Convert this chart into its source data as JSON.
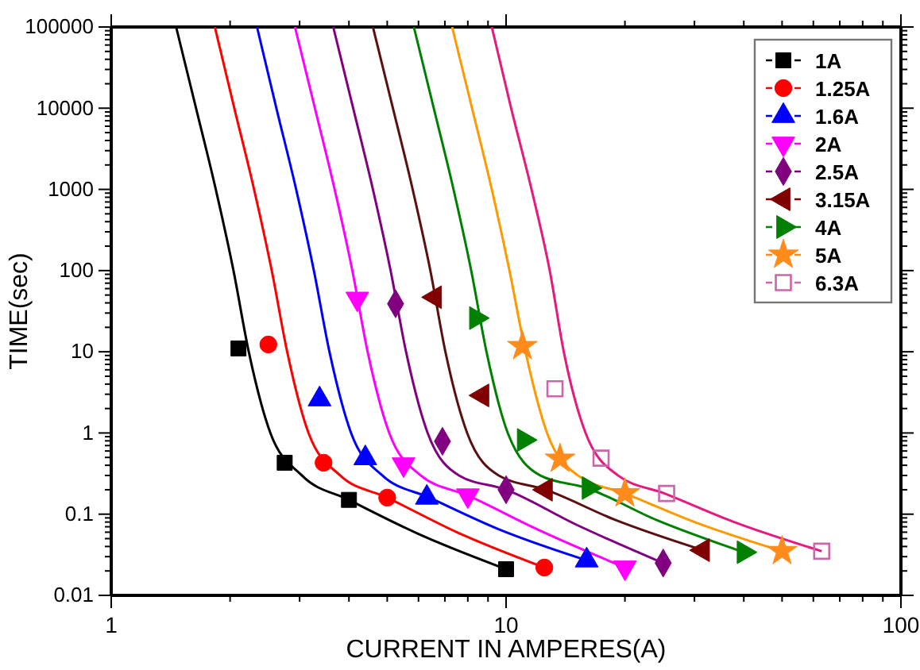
{
  "chart_data": {
    "type": "line",
    "xlabel": "CURRENT IN AMPERES(A)",
    "ylabel": "TIME(sec)",
    "log": "xy",
    "xlim": [
      1,
      100
    ],
    "ylim": [
      0.01,
      100000
    ],
    "xticks": [
      1,
      10,
      100
    ],
    "yticks": [
      0.01,
      0.1,
      1,
      10,
      100,
      1000,
      10000,
      100000
    ],
    "legend": "top right",
    "series": [
      {
        "name": "1A",
        "type": "scatter",
        "color": "#000000",
        "marker": "square",
        "x": [
          2.1,
          2.75,
          4,
          10
        ],
        "values": [
          11,
          0.43,
          0.15,
          0.021
        ]
      },
      {
        "name": "1.25A",
        "type": "scatter",
        "color": "#ff0000",
        "marker": "circle",
        "x": [
          2.5,
          3.45,
          5,
          12.5
        ],
        "values": [
          12.3,
          0.43,
          0.16,
          0.022
        ]
      },
      {
        "name": "1.6A",
        "type": "scatter",
        "color": "#0000ff",
        "marker": "triangle",
        "x": [
          3.37,
          4.4,
          6.3,
          16
        ],
        "values": [
          2.6,
          0.49,
          0.16,
          0.027
        ]
      },
      {
        "name": "2A",
        "type": "scatter",
        "color": "#ff00ff",
        "marker": "triangle-down",
        "x": [
          4.2,
          5.5,
          8,
          20
        ],
        "values": [
          45,
          0.41,
          0.17,
          0.022
        ]
      },
      {
        "name": "2.5A",
        "type": "scatter",
        "color": "#800080",
        "marker": "diamond",
        "x": [
          5.25,
          6.9,
          10,
          25
        ],
        "values": [
          39,
          0.79,
          0.2,
          0.025
        ]
      },
      {
        "name": "3.15A",
        "type": "scatter",
        "color": "#800000",
        "marker": "triangle-left",
        "x": [
          6.6,
          8.7,
          12.6,
          31.5
        ],
        "values": [
          47,
          2.9,
          0.2,
          0.036
        ]
      },
      {
        "name": "4A",
        "type": "scatter",
        "color": "#008000",
        "marker": "triangle-right",
        "x": [
          8.4,
          11.1,
          16.2,
          40
        ],
        "values": [
          26,
          0.82,
          0.21,
          0.034
        ]
      },
      {
        "name": "5A",
        "type": "scatter",
        "color": "#ff8c1a",
        "marker": "star",
        "x": [
          11,
          13.7,
          20,
          50
        ],
        "values": [
          11.7,
          0.48,
          0.18,
          0.035
        ]
      },
      {
        "name": "6.3A",
        "type": "scatter",
        "color": "#cc66aa",
        "marker": "square-open",
        "x": [
          13.3,
          17.4,
          25.5,
          63
        ],
        "values": [
          3.5,
          0.49,
          0.18,
          0.035
        ]
      },
      {
        "type": "line",
        "color": "#000000",
        "x": [
          1.46,
          1.64,
          1.84,
          2.04,
          2.23,
          2.53,
          3.04,
          4,
          6,
          10
        ],
        "values": [
          100000,
          10000,
          1000,
          100,
          10,
          1,
          0.3,
          0.15,
          0.057,
          0.021
        ]
      },
      {
        "type": "line",
        "color": "#ff0000",
        "x": [
          1.83,
          2.05,
          2.3,
          2.55,
          2.79,
          3.16,
          3.8,
          5,
          7.5,
          12.5
        ],
        "values": [
          100000,
          10000,
          1000,
          100,
          10,
          1,
          0.3,
          0.16,
          0.06,
          0.022
        ]
      },
      {
        "type": "line",
        "color": "#0000ff",
        "x": [
          2.34,
          2.62,
          2.94,
          3.26,
          3.57,
          4.05,
          4.86,
          6.4,
          9.6,
          16
        ],
        "values": [
          100000,
          10000,
          1000,
          100,
          10,
          1,
          0.3,
          0.16,
          0.065,
          0.027
        ]
      },
      {
        "type": "line",
        "color": "#ff00ff",
        "x": [
          2.92,
          3.28,
          3.68,
          4.08,
          4.46,
          5.06,
          6.08,
          8,
          12,
          20
        ],
        "values": [
          100000,
          10000,
          1000,
          100,
          10,
          1,
          0.3,
          0.17,
          0.065,
          0.022
        ]
      },
      {
        "type": "line",
        "color": "#800080",
        "x": [
          3.65,
          4.1,
          4.6,
          5.1,
          5.58,
          6.33,
          7.6,
          10,
          15,
          25
        ],
        "values": [
          100000,
          10000,
          1000,
          100,
          10,
          1,
          0.3,
          0.2,
          0.075,
          0.025
        ]
      },
      {
        "type": "line",
        "color": "#5a1010",
        "x": [
          4.6,
          5.17,
          5.8,
          6.43,
          7.02,
          7.97,
          9.58,
          12.6,
          18.9,
          31.5
        ],
        "values": [
          100000,
          10000,
          1000,
          100,
          10,
          1,
          0.3,
          0.2,
          0.085,
          0.036
        ]
      },
      {
        "type": "line",
        "color": "#008000",
        "x": [
          5.84,
          6.56,
          7.36,
          8.16,
          8.92,
          10.1,
          12.2,
          16,
          24,
          40
        ],
        "values": [
          100000,
          10000,
          1000,
          100,
          10,
          1,
          0.3,
          0.21,
          0.085,
          0.034
        ]
      },
      {
        "type": "line",
        "color": "#ff9900",
        "x": [
          7.3,
          8.2,
          9.2,
          10.2,
          11.2,
          12.7,
          15.2,
          20,
          30,
          50
        ],
        "values": [
          100000,
          10000,
          1000,
          100,
          10,
          1,
          0.3,
          0.18,
          0.08,
          0.035
        ]
      },
      {
        "type": "line",
        "color": "#e6197f",
        "x": [
          9.2,
          10.3,
          11.6,
          12.9,
          14,
          15.9,
          19.2,
          25.2,
          37.8,
          63
        ],
        "values": [
          100000,
          10000,
          1000,
          100,
          10,
          1,
          0.3,
          0.18,
          0.08,
          0.035
        ]
      }
    ]
  }
}
